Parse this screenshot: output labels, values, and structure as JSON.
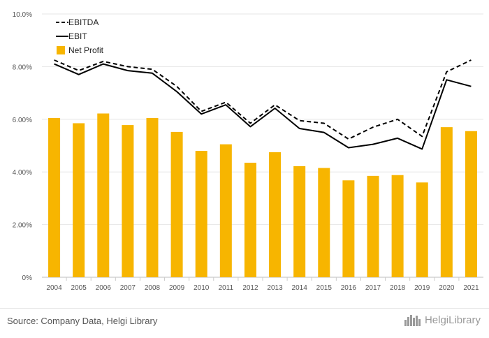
{
  "chart_data": {
    "type": "bar+line",
    "title": "",
    "xlabel": "",
    "ylabel": "",
    "ylim": [
      0,
      10
    ],
    "y_ticks": [
      0,
      2,
      4,
      6,
      8,
      10
    ],
    "y_tick_labels": [
      "0%",
      "2.00%",
      "4.00%",
      "6.00%",
      "8.00%",
      "10.0%"
    ],
    "categories": [
      "2004",
      "2005",
      "2006",
      "2007",
      "2008",
      "2009",
      "2010",
      "2011",
      "2012",
      "2013",
      "2014",
      "2015",
      "2016",
      "2017",
      "2018",
      "2019",
      "2020",
      "2021"
    ],
    "series": [
      {
        "name": "EBITDA",
        "kind": "line",
        "style": "dashed",
        "color": "#000000",
        "values": [
          8.25,
          7.85,
          8.2,
          8.0,
          7.9,
          7.25,
          6.3,
          6.65,
          5.85,
          6.55,
          5.95,
          5.85,
          5.25,
          5.7,
          6.0,
          5.35,
          7.8,
          8.25
        ]
      },
      {
        "name": "EBIT",
        "kind": "line",
        "style": "solid",
        "color": "#000000",
        "values": [
          8.1,
          7.7,
          8.1,
          7.85,
          7.75,
          7.05,
          6.2,
          6.55,
          5.72,
          6.42,
          5.65,
          5.5,
          4.92,
          5.05,
          5.28,
          4.87,
          7.5,
          7.25
        ]
      },
      {
        "name": "Net Profit",
        "kind": "bar",
        "color": "#F7B500",
        "values": [
          6.05,
          5.85,
          6.22,
          5.78,
          6.05,
          5.52,
          4.8,
          5.05,
          4.35,
          4.75,
          4.22,
          4.15,
          3.68,
          3.85,
          3.88,
          3.6,
          5.7,
          5.55
        ]
      }
    ],
    "legend_position": "top-left",
    "grid": true
  },
  "footer": {
    "source": "Source: Company Data, Helgi Library",
    "logo_text": "HelgiLibrary",
    "logo_icon": "city-skyline-icon"
  }
}
